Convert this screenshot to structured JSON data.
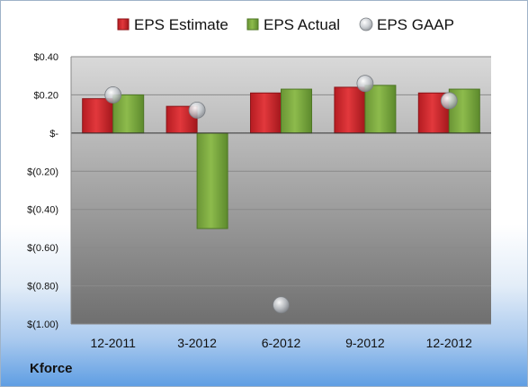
{
  "company_label": "Kforce",
  "colors": {
    "estimate": "#d42a2f",
    "actual": "#7ba83e",
    "gaap": "#bfc3c8",
    "plot_top": "#d9d9d9",
    "plot_bottom": "#6f6f6f"
  },
  "chart_data": {
    "type": "bar",
    "categories": [
      "12-2011",
      "3-2012",
      "6-2012",
      "9-2012",
      "12-2012"
    ],
    "series": [
      {
        "name": "EPS Estimate",
        "kind": "bar",
        "values": [
          0.18,
          0.14,
          0.21,
          0.24,
          0.21
        ]
      },
      {
        "name": "EPS Actual",
        "kind": "bar",
        "values": [
          0.2,
          -0.5,
          0.23,
          0.25,
          0.23
        ]
      },
      {
        "name": "EPS GAAP",
        "kind": "marker",
        "values": [
          0.2,
          0.12,
          -0.9,
          0.26,
          0.17
        ]
      }
    ],
    "ylim": [
      -1.0,
      0.4
    ],
    "yticks": [
      0.4,
      0.2,
      0,
      -0.2,
      -0.4,
      -0.6,
      -0.8,
      -1.0
    ],
    "ytick_labels": [
      "$0.40",
      "$0.20",
      "$-",
      "$(0.20)",
      "$(0.40)",
      "$(0.60)",
      "$(0.80)",
      "$(1.00)"
    ],
    "grid": true,
    "legend": "top",
    "title": "",
    "xlabel": "",
    "ylabel": ""
  }
}
